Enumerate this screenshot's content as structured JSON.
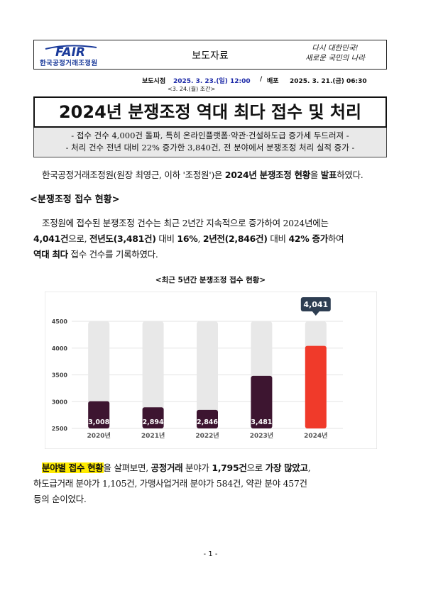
{
  "header": {
    "logo_text": "FAIR",
    "organization": "한국공정거래조정원",
    "doc_type": "보도자료",
    "slogan_line1": "다시 대한민국!",
    "slogan_line2": "새로운 국민의 나라"
  },
  "release": {
    "time_label": "보도시점",
    "time_value": "2025. 3. 23.(일) 12:00",
    "separator": "/",
    "dist_label": "배포",
    "dist_value": "2025. 3. 21.(금) 06:30",
    "sub_note": "<3. 24.(월) 조간>"
  },
  "title": "2024년 분쟁조정 역대 최다 접수 및 처리",
  "subtitle_lines": [
    "- 접수 건수 4,000건 돌파, 특히 온라인플랫폼·약관·건설하도급 증가세 두드러져 -",
    "- 처리 건수 전년 대비 22% 증가한 3,840건, 전 분야에서 분쟁조정 처리 실적 증가 -"
  ],
  "intro": {
    "part1": "한국공정거래조정원(원장 최영근, 이하 '조정원')은 ",
    "bold1": "2024년 분쟁조정 현황",
    "part2": "을 ",
    "bold2": "발표",
    "part3": "하였다."
  },
  "section_heading": "<분쟁조정 접수 현황>",
  "para1": {
    "p1": "조정원에 접수된 분쟁조정 건수는 최근 2년간 지속적으로 증가하여 2024년에는",
    "b1": "4,041건",
    "p2": "으로, ",
    "b2": "전년도(3,481건)",
    "p3": " 대비 ",
    "b3": "16%",
    "p4": ", ",
    "b4": "2년전(2,846건)",
    "p5": " 대비 ",
    "b5": "42% 증가",
    "p6": "하여",
    "b6": "역대 최다",
    "p7": " 접수 건수를 기록하였다."
  },
  "chart_title": "<최근 5년간 분쟁조정 접수 현황>",
  "chart_data": {
    "type": "bar",
    "categories": [
      "2020년",
      "2021년",
      "2022년",
      "2023년",
      "2024년"
    ],
    "values": [
      3008,
      2894,
      2846,
      3481,
      4041
    ],
    "value_labels": [
      "3,008",
      "2,894",
      "2,846",
      "3,481",
      ""
    ],
    "callout": "4,041",
    "y_ticks": [
      "4500",
      "4000",
      "3500",
      "3000",
      "2500"
    ],
    "ylim": [
      2500,
      4500
    ],
    "colors": {
      "normal": "#3d1530",
      "highlight": "#f03a2a",
      "track": "#e8e8e8",
      "callout": "#2e3e52"
    }
  },
  "para2": {
    "b1": "분야별 접수 현황",
    "p1": "을 살펴보면, ",
    "b2": "공정거래",
    "p2": " 분야가 ",
    "b3": "1,795건",
    "p3": "으로 ",
    "b4": "가장 많았고",
    "p4": ",",
    "line2": "하도급거래 분야가 1,105건, 가맹사업거래 분야가 584건, 약관 분야 457건",
    "line3": "등의 순이었다."
  },
  "page_number": "- 1 -"
}
